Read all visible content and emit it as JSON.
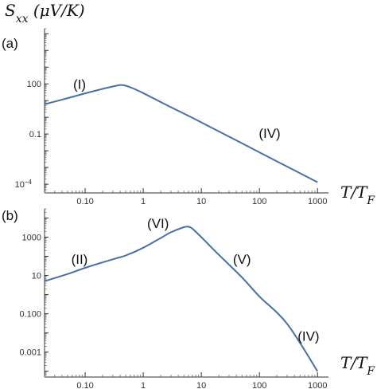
{
  "chart_data": [
    {
      "type": "line",
      "panel_label": "(a)",
      "ylabel": "S_xx (μV/K)",
      "xlabel": "T/T_F",
      "x_scale": "log",
      "y_scale": "log",
      "xlim": [
        0.02,
        1200
      ],
      "ylim": [
        3e-05,
        200000
      ],
      "xticks": [
        {
          "value": 0.1,
          "label": "0.10"
        },
        {
          "value": 1,
          "label": "1"
        },
        {
          "value": 10,
          "label": "10"
        },
        {
          "value": 100,
          "label": "100"
        },
        {
          "value": 1000,
          "label": "1000"
        }
      ],
      "yticks": [
        {
          "value": 100,
          "label": "100"
        },
        {
          "value": 0.1,
          "label": "0.1"
        },
        {
          "value": 0.0001,
          "label": "10",
          "sup": "−4"
        }
      ],
      "series": [
        {
          "color": "#4a6fa5",
          "points": [
            [
              0.02,
              6
            ],
            [
              0.05,
              14
            ],
            [
              0.1,
              27
            ],
            [
              0.2,
              50
            ],
            [
              0.3,
              70
            ],
            [
              0.4,
              85
            ],
            [
              0.5,
              78
            ],
            [
              0.7,
              50
            ],
            [
              1,
              28
            ],
            [
              3,
              4
            ],
            [
              10,
              0.5
            ],
            [
              100,
              0.008
            ],
            [
              1000,
              0.00013
            ]
          ]
        }
      ],
      "annotations": [
        {
          "text": "(I)",
          "x": 0.08,
          "y": 50
        },
        {
          "text": "(IV)",
          "x": 150,
          "y": 0.06
        }
      ]
    },
    {
      "type": "line",
      "panel_label": "(b)",
      "xlabel": "T/T_F",
      "x_scale": "log",
      "y_scale": "log",
      "xlim": [
        0.02,
        1200
      ],
      "ylim": [
        5e-05,
        30000
      ],
      "xticks": [
        {
          "value": 0.1,
          "label": "0.10"
        },
        {
          "value": 1,
          "label": "1"
        },
        {
          "value": 10,
          "label": "10"
        },
        {
          "value": 100,
          "label": "100"
        },
        {
          "value": 1000,
          "label": "1000"
        }
      ],
      "yticks": [
        {
          "value": 1000,
          "label": "1000"
        },
        {
          "value": 10,
          "label": "10"
        },
        {
          "value": 0.1,
          "label": "0.100"
        },
        {
          "value": 0.001,
          "label": "0.001"
        }
      ],
      "series": [
        {
          "color": "#4a6fa5",
          "points": [
            [
              0.02,
              5
            ],
            [
              0.05,
              12
            ],
            [
              0.1,
              25
            ],
            [
              0.3,
              70
            ],
            [
              0.5,
              110
            ],
            [
              1,
              280
            ],
            [
              2,
              900
            ],
            [
              3,
              1800
            ],
            [
              5,
              3300
            ],
            [
              6,
              3500
            ],
            [
              7,
              2800
            ],
            [
              10,
              1000
            ],
            [
              20,
              120
            ],
            [
              50,
              8
            ],
            [
              100,
              0.8
            ],
            [
              300,
              0.03
            ],
            [
              1000,
              0.0001
            ]
          ]
        }
      ],
      "annotations": [
        {
          "text": "(II)",
          "x": 0.08,
          "y": 40
        },
        {
          "text": "(VI)",
          "x": 1.8,
          "y": 3000
        },
        {
          "text": "(V)",
          "x": 50,
          "y": 40
        },
        {
          "text": "(IV)",
          "x": 700,
          "y": 0.004
        }
      ]
    }
  ]
}
